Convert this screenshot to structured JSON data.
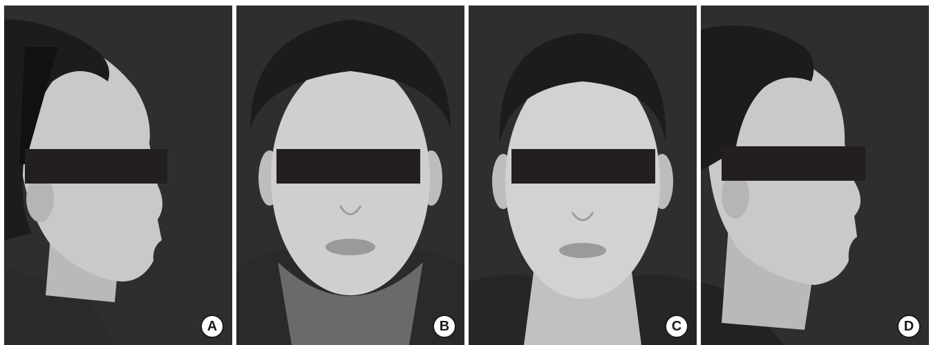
{
  "figure": {
    "panels": [
      {
        "label": "A",
        "view": "right-profile"
      },
      {
        "label": "B",
        "view": "frontal"
      },
      {
        "label": "C",
        "view": "frontal"
      },
      {
        "label": "D",
        "view": "right-profile"
      }
    ]
  },
  "colors": {
    "background": "#2e2e2e",
    "skin": "#c9c9c9",
    "hair": "#1c1c1c",
    "clothing": "#2a2a2a",
    "censor_bar": "#231f20"
  }
}
